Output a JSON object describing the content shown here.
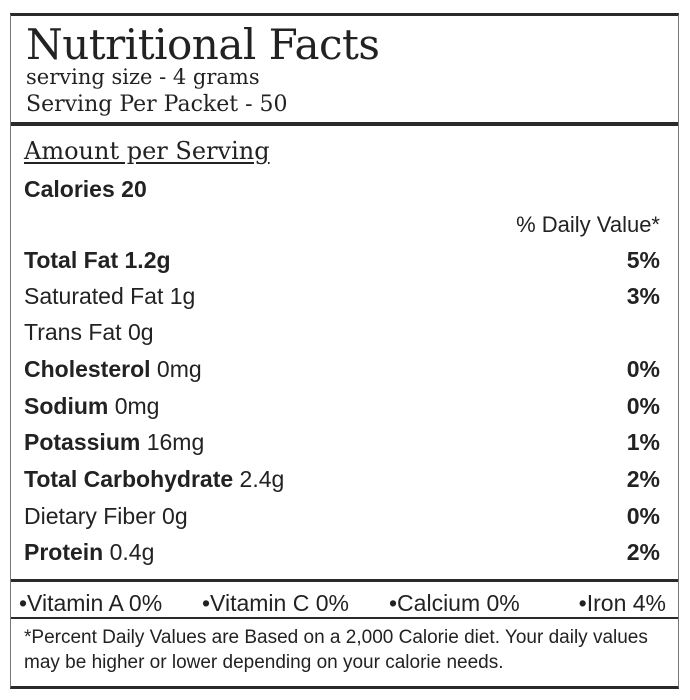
{
  "header": {
    "title": "Nutritional Facts",
    "serving_size": "serving size - 4 grams",
    "servings": "Serving Per Packet - 50"
  },
  "amount_per_serving": "Amount per Serving",
  "calories": "Calories 20",
  "daily_value_header": "% Daily Value*",
  "nutrients": [
    {
      "bold": "Total Fat 1.2g",
      "plain": "",
      "pct": "5%"
    },
    {
      "bold": "",
      "plain": "Saturated Fat 1g",
      "pct": "3%"
    },
    {
      "bold": "",
      "plain": "Trans Fat 0g",
      "pct": ""
    },
    {
      "bold": "Cholesterol",
      "plain": " 0mg",
      "pct": "0%"
    },
    {
      "bold": "Sodium",
      "plain": " 0mg",
      "pct": "0%"
    },
    {
      "bold": "Potassium",
      "plain": " 16mg",
      "pct": "1%"
    },
    {
      "bold": "Total Carbohydrate",
      "plain": " 2.4g",
      "pct": "2%"
    },
    {
      "bold": "",
      "plain": "Dietary Fiber 0g",
      "pct": "0%"
    },
    {
      "bold": "Protein",
      "plain": " 0.4g",
      "pct": "2%"
    }
  ],
  "vitamins": [
    "•Vitamin A 0%",
    "•Vitamin C 0%",
    "•Calcium 0%",
    "•Iron 4%"
  ],
  "footnote": "*Percent Daily Values are Based on a 2,000 Calorie diet. Your daily values may be higher or lower depending on your calorie needs."
}
